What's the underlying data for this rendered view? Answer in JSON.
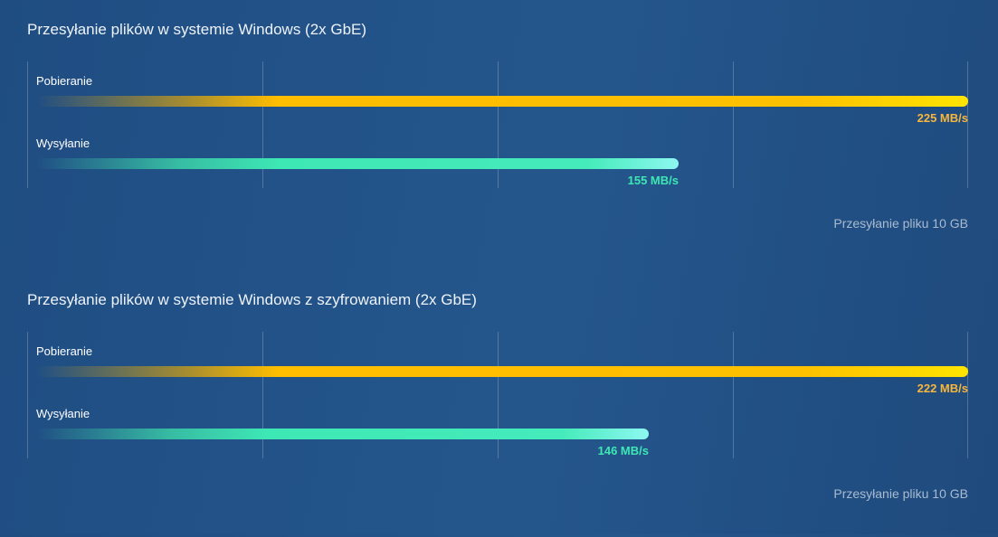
{
  "chart_data": [
    {
      "type": "bar",
      "orientation": "horizontal",
      "title": "Przesyłanie plików w systemie Windows (2x GbE)",
      "categories": [
        "Pobieranie",
        "Wysyłanie"
      ],
      "values": [
        225,
        155
      ],
      "value_labels": [
        "225 MB/s",
        "155 MB/s"
      ],
      "unit": "MB/s",
      "xlim": [
        0,
        225
      ],
      "grid": true,
      "grid_divisions": 4,
      "footnote": "Przesyłanie pliku 10 GB",
      "colors": {
        "Pobieranie": "#ffc000",
        "Wysyłanie": "#3ee8b4"
      }
    },
    {
      "type": "bar",
      "orientation": "horizontal",
      "title": "Przesyłanie plików w systemie Windows z szyfrowaniem (2x GbE)",
      "categories": [
        "Pobieranie",
        "Wysyłanie"
      ],
      "values": [
        222,
        146
      ],
      "value_labels": [
        "222 MB/s",
        "146 MB/s"
      ],
      "unit": "MB/s",
      "xlim": [
        0,
        222
      ],
      "grid": true,
      "grid_divisions": 4,
      "footnote": "Przesyłanie pliku 10 GB",
      "colors": {
        "Pobieranie": "#ffc000",
        "Wysyłanie": "#3ee8b4"
      }
    }
  ]
}
